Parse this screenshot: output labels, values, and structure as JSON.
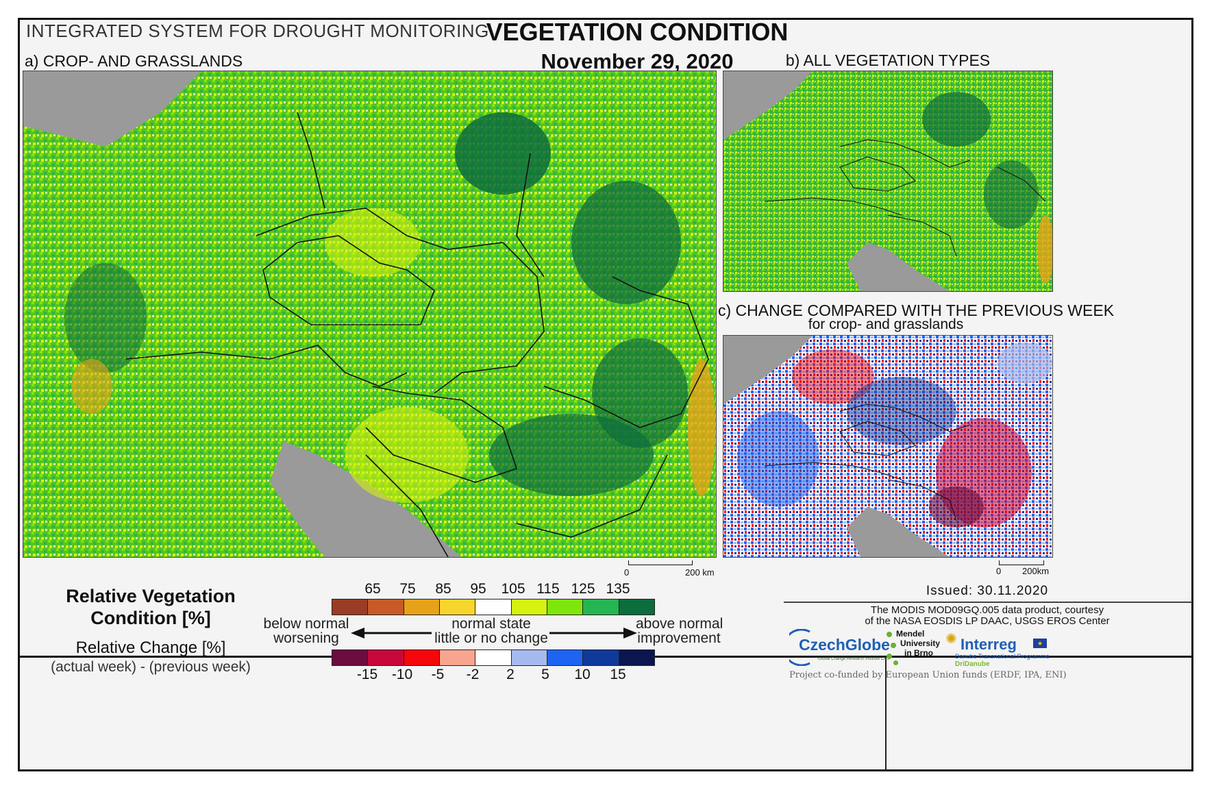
{
  "header": {
    "system": "INTEGRATED SYSTEM FOR DROUGHT MONITORING",
    "title": "VEGETATION CONDITION",
    "date": "November 29, 2020"
  },
  "panels": {
    "a": "a) CROP- AND GRASSLANDS",
    "b": "b) ALL VEGETATION TYPES",
    "c_line1": "c) CHANGE COMPARED WITH THE PREVIOUS WEEK",
    "c_line2": "for crop- and grasslands"
  },
  "scalebars": {
    "a_zero": "0",
    "a_km": "200 km",
    "c_zero": "0",
    "c_km": "200km"
  },
  "legend": {
    "rvc_title_line1": "Relative Vegetation",
    "rvc_title_line2": "Condition [%]",
    "rc_title": "Relative Change [%]",
    "rc_subtitle": "(actual week) - (previous week)",
    "rvc_ticks": [
      "65",
      "75",
      "85",
      "95",
      "105",
      "115",
      "125",
      "135"
    ],
    "rvc_colors": [
      "#9a3d26",
      "#c85a28",
      "#e6a319",
      "#f8d52c",
      "#ffffff",
      "#d6f20f",
      "#7ee60c",
      "#25b552",
      "#0c6d3d"
    ],
    "rc_ticks": [
      "-15",
      "-10",
      "-5",
      "-2",
      "2",
      "5",
      "10",
      "15"
    ],
    "rc_colors": [
      "#6b0d3e",
      "#c8083a",
      "#f5070b",
      "#f7a58f",
      "#ffffff",
      "#a7baf0",
      "#1f63f2",
      "#103a9a",
      "#0b1650"
    ],
    "below_line1": "below normal",
    "below_line2": "worsening",
    "normal_line1": "normal state",
    "normal_line2": "little or no change",
    "above_line1": "above normal",
    "above_line2": "improvement"
  },
  "info": {
    "issued": "Issued: 30.11.2020",
    "credit_line1": "The MODIS MOD09GQ.005 data product, courtesy",
    "credit_line2": "of the NASA EOSDIS LP DAAC, USGS EROS Center",
    "czechglobe": "CzechGlobe",
    "czechglobe_sub": "Global Change Research Institute CAS",
    "mendel_line1": "Mendel",
    "mendel_line2": "University",
    "mendel_line3": "in Brno",
    "interreg": "Interreg",
    "interreg_sub": "Danube Transnational Programme",
    "dridanube": "DriDanube",
    "cofund": "Project co-funded by European Union funds (ERDF, IPA, ENI)"
  },
  "colors": {
    "sea_land_mask": "#9a9a9a",
    "vegetation_greens": [
      "#0c6d3d",
      "#25b552",
      "#7ee60c",
      "#d6f20f"
    ],
    "change_blues": [
      "#1f63f2",
      "#103a9a",
      "#a7baf0"
    ],
    "change_reds": [
      "#f5070b",
      "#c8083a",
      "#6b0d3e"
    ]
  }
}
